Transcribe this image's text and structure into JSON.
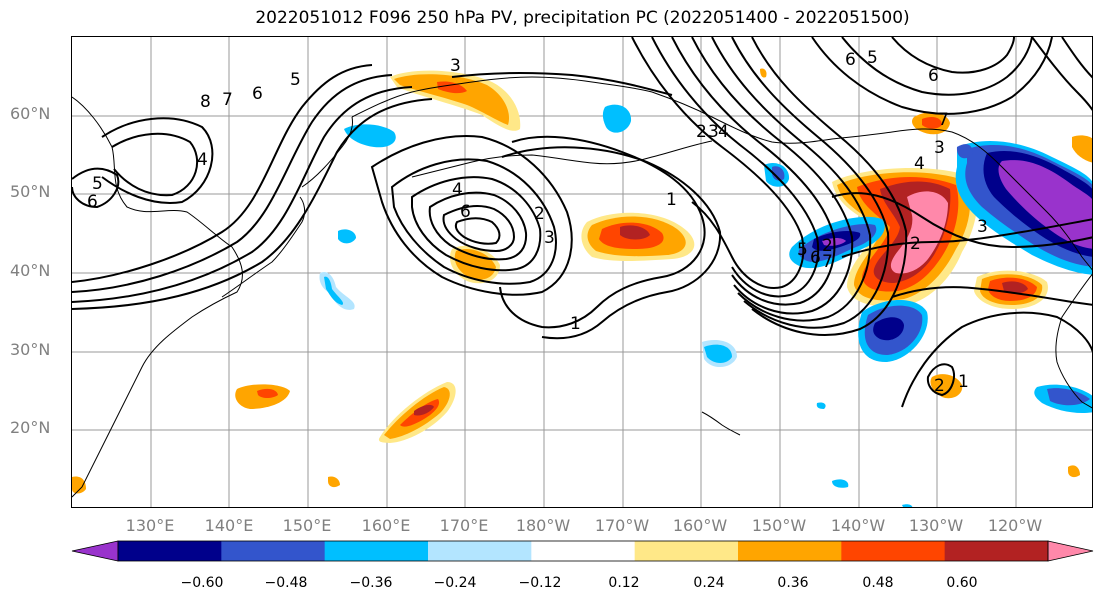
{
  "title": "2022051012 F096 250 hPa PV, precipitation PC (2022051400 - 2022051500)",
  "lat_labels": [
    "60°N",
    "50°N",
    "40°N",
    "30°N",
    "20°N"
  ],
  "lon_labels": [
    "130°E",
    "140°E",
    "150°E",
    "160°E",
    "170°E",
    "180°W",
    "170°W",
    "160°W",
    "150°W",
    "140°W",
    "130°W",
    "120°W"
  ],
  "colorbar": {
    "tick_labels": [
      "−0.60",
      "−0.48",
      "−0.36",
      "−0.24",
      "−0.12",
      "0.12",
      "0.24",
      "0.36",
      "0.48",
      "0.60"
    ],
    "colors": [
      "#9933cc",
      "#00008b",
      "#3355cc",
      "#00bfff",
      "#b3e5ff",
      "#ffffff",
      "#ffe888",
      "#ffa500",
      "#ff4500",
      "#b22222",
      "#ff88aa"
    ]
  },
  "pv_contour_labels": [
    "3",
    "8",
    "7",
    "6",
    "5",
    "4",
    "5",
    "6",
    "4",
    "6",
    "2",
    "3",
    "1",
    "1",
    "2",
    "3",
    "4",
    "5",
    "6",
    "7",
    "2",
    "3",
    "4",
    "1",
    "2",
    "6",
    "5",
    "6",
    "7",
    "3",
    "2"
  ],
  "map": {
    "projection": "cylindrical",
    "lon_range": [
      "120°E",
      "110°W"
    ],
    "lat_range": [
      "10°N",
      "70°N"
    ],
    "grid": true
  }
}
